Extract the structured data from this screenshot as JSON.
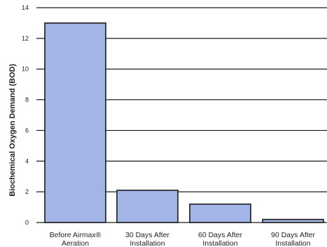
{
  "chart_data": {
    "type": "bar",
    "title": "",
    "xlabel": "",
    "ylabel": "Biochemical Oxygen Demand (BOD)",
    "categories": [
      [
        "Before Airmax®",
        "Aeration"
      ],
      [
        "30 Days After",
        "Installation"
      ],
      [
        "60 Days After",
        "Installation"
      ],
      [
        "90 Days After",
        "Installation"
      ]
    ],
    "values": [
      13,
      2.1,
      1.2,
      0.2
    ],
    "ylim": [
      0,
      14
    ],
    "yticks": [
      0,
      2,
      4,
      6,
      8,
      10,
      12,
      14
    ],
    "grid": true,
    "legend": "none",
    "colors": {
      "bar_fill": "#a3b5e6",
      "bar_stroke": "#1a1a1a",
      "grid": "#1a1a1a",
      "text": "#222222"
    }
  }
}
